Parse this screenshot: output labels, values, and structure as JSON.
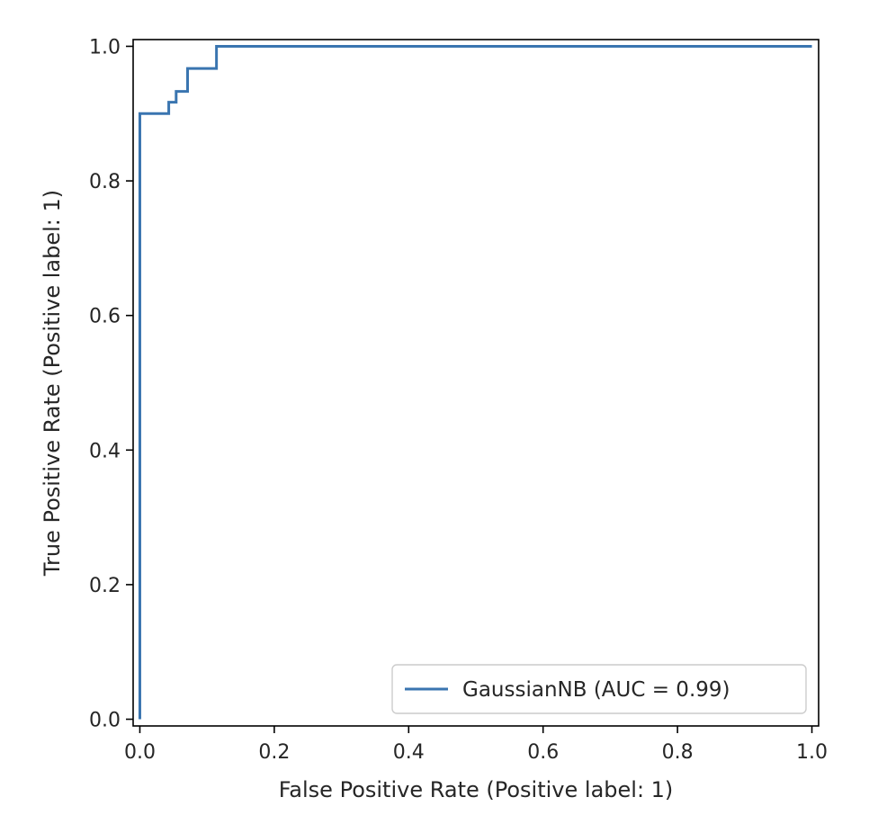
{
  "chart_data": {
    "type": "line",
    "title": "",
    "xlabel": "False Positive Rate (Positive label: 1)",
    "ylabel": "True Positive Rate (Positive label: 1)",
    "xlim": [
      -0.01,
      1.01
    ],
    "ylim": [
      -0.01,
      1.01
    ],
    "xticks": [
      0.0,
      0.2,
      0.4,
      0.6,
      0.8,
      1.0
    ],
    "xtick_labels": [
      "0.0",
      "0.2",
      "0.4",
      "0.6",
      "0.8",
      "1.0"
    ],
    "yticks": [
      0.0,
      0.2,
      0.4,
      0.6,
      0.8,
      1.0
    ],
    "ytick_labels": [
      "0.0",
      "0.2",
      "0.4",
      "0.6",
      "0.8",
      "1.0"
    ],
    "grid": false,
    "legend_position": "lower-right",
    "series": [
      {
        "name": "GaussianNB (AUC = 0.99)",
        "color": "#3a75b0",
        "step": "post",
        "x": [
          0.0,
          0.0,
          0.0,
          0.043,
          0.043,
          0.054,
          0.054,
          0.071,
          0.071,
          0.114,
          0.114,
          1.0
        ],
        "y": [
          0.0,
          0.0,
          0.9,
          0.9,
          0.917,
          0.917,
          0.933,
          0.933,
          0.967,
          0.967,
          1.0,
          1.0
        ]
      }
    ]
  }
}
